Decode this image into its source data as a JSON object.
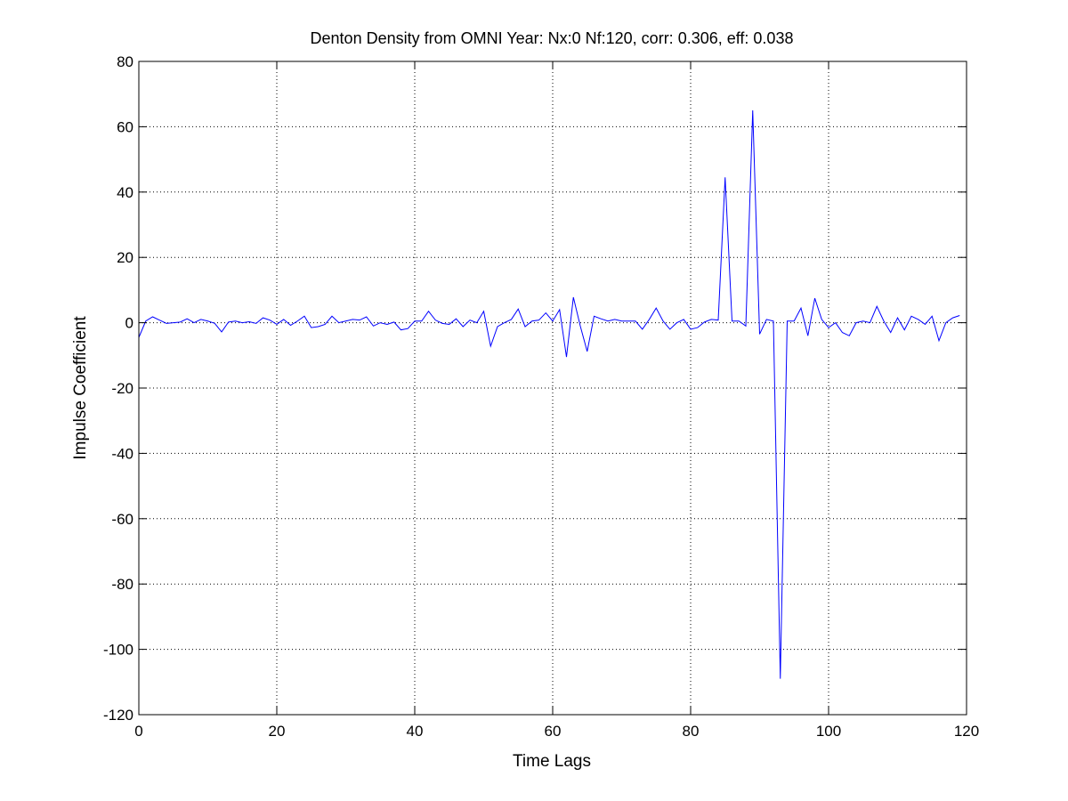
{
  "chart_data": {
    "type": "line",
    "title": "Denton Density from OMNI Year: Nx:0 Nf:120, corr: 0.306, eff: 0.038",
    "xlabel": "Time Lags",
    "ylabel": "Impulse Coefficient",
    "xlim": [
      0,
      120
    ],
    "ylim": [
      -120,
      80
    ],
    "xticks": [
      0,
      20,
      40,
      60,
      80,
      100,
      120
    ],
    "yticks": [
      -120,
      -100,
      -80,
      -60,
      -40,
      -20,
      0,
      20,
      40,
      60,
      80
    ],
    "grid": true,
    "legend": "none",
    "line_color": "#0000ff",
    "series": [
      {
        "x": [
          0,
          1,
          2,
          3,
          4,
          5,
          6,
          7,
          8,
          9,
          10,
          11,
          12,
          13,
          14,
          15,
          16,
          17,
          18,
          19,
          20,
          21,
          22,
          23,
          24,
          25,
          26,
          27,
          28,
          29,
          30,
          31,
          32,
          33,
          34,
          35,
          36,
          37,
          38,
          39,
          40,
          41,
          42,
          43,
          44,
          45,
          46,
          47,
          48,
          49,
          50,
          51,
          52,
          53,
          54,
          55,
          56,
          57,
          58,
          59,
          60,
          61,
          62,
          63,
          64,
          65,
          66,
          67,
          68,
          69,
          70,
          71,
          72,
          73,
          74,
          75,
          76,
          77,
          78,
          79,
          80,
          81,
          82,
          83,
          84,
          85,
          86,
          87,
          88,
          89,
          90,
          91,
          92,
          93,
          94,
          95,
          96,
          97,
          98,
          99,
          100,
          101,
          102,
          103,
          104,
          105,
          106,
          107,
          108,
          109,
          110,
          111,
          112,
          113,
          114,
          115,
          116,
          117,
          118,
          119
        ],
        "values": [
          -4.5,
          0.5,
          1.8,
          0.8,
          -0.2,
          0,
          0.2,
          1.2,
          0,
          1,
          0.5,
          -0.2,
          -2.8,
          0.2,
          0.5,
          0,
          0.3,
          -0.2,
          1.5,
          0.8,
          -0.5,
          1,
          -0.8,
          0.5,
          2,
          -1.5,
          -1.2,
          -0.5,
          2,
          0,
          0.5,
          1,
          0.8,
          1.8,
          -1,
          0,
          -0.5,
          0.2,
          -2.2,
          -1.8,
          0.5,
          0.5,
          3.5,
          0.8,
          -0.2,
          -0.5,
          1.2,
          -1.2,
          0.8,
          0,
          3.5,
          -7.2,
          -1.2,
          0,
          1,
          4.2,
          -1.2,
          0.5,
          0.8,
          3,
          0.5,
          4,
          -10.5,
          7.8,
          -1,
          -8.8,
          2,
          1.2,
          0.5,
          1,
          0.5,
          0.5,
          0.5,
          -2,
          1,
          4.5,
          0.5,
          -2,
          0,
          1,
          -2,
          -1.5,
          0.2,
          1,
          0.8,
          44.5,
          0.5,
          0.5,
          -1,
          65,
          -3.5,
          1,
          0.5,
          -109,
          0.5,
          0.5,
          4.5,
          -4,
          7.5,
          1,
          -1.5,
          0,
          -3,
          -4,
          0,
          0.5,
          0,
          5,
          0.5,
          -3,
          1.5,
          -2.2,
          2,
          1,
          -0.5,
          2,
          -5.5,
          0,
          1.5,
          2.2
        ]
      }
    ]
  }
}
